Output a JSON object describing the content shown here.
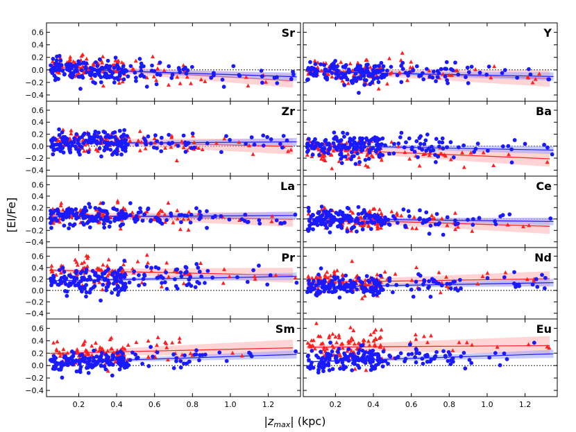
{
  "chart_data": {
    "type": "scatter",
    "xlabel_prefix": "|",
    "xlabel_var": "z",
    "xlabel_sub": "max",
    "xlabel_suffix": "| (kpc)",
    "ylabel": "[El/Fe]",
    "xlim": [
      0.03,
      1.37
    ],
    "ylim": [
      -0.5,
      0.75
    ],
    "xticks": [
      "0.2",
      "0.4",
      "0.6",
      "0.8",
      "1.0",
      "1.2"
    ],
    "xtick_values": [
      0.2,
      0.4,
      0.6,
      0.8,
      1.0,
      1.2
    ],
    "yticks": [
      "0.6",
      "0.4",
      "0.2",
      "0.0",
      "−0.2",
      "−0.4"
    ],
    "ytick_values": [
      0.6,
      0.4,
      0.2,
      0.0,
      -0.2,
      -0.4
    ],
    "colors": {
      "blue": "#1a1aff",
      "red": "#ff2020",
      "blue_band": "#9aa0ff",
      "red_band": "#ffb0b0"
    },
    "panels": [
      {
        "element": "Sr",
        "blue": {
          "mean": 0.0,
          "slope": -0.1,
          "spread": 0.09,
          "band": 0.03
        },
        "red": {
          "mean": 0.02,
          "slope": -0.18,
          "spread": 0.1,
          "band": 0.05
        }
      },
      {
        "element": "Y",
        "blue": {
          "mean": -0.04,
          "slope": -0.06,
          "spread": 0.08,
          "band": 0.03
        },
        "red": {
          "mean": -0.03,
          "slope": -0.1,
          "spread": 0.1,
          "band": 0.06
        }
      },
      {
        "element": "Zr",
        "blue": {
          "mean": 0.05,
          "slope": 0.02,
          "spread": 0.1,
          "band": 0.03
        },
        "red": {
          "mean": 0.08,
          "slope": -0.08,
          "spread": 0.1,
          "band": 0.06
        }
      },
      {
        "element": "Ba",
        "blue": {
          "mean": 0.0,
          "slope": -0.06,
          "spread": 0.1,
          "band": 0.03
        },
        "red": {
          "mean": -0.07,
          "slope": -0.13,
          "spread": 0.1,
          "band": 0.06
        }
      },
      {
        "element": "La",
        "blue": {
          "mean": 0.04,
          "slope": 0.02,
          "spread": 0.09,
          "band": 0.03
        },
        "red": {
          "mean": 0.06,
          "slope": -0.06,
          "spread": 0.09,
          "band": 0.06
        }
      },
      {
        "element": "Ce",
        "blue": {
          "mean": 0.0,
          "slope": -0.04,
          "spread": 0.1,
          "band": 0.03
        },
        "red": {
          "mean": -0.02,
          "slope": -0.1,
          "spread": 0.1,
          "band": 0.06
        }
      },
      {
        "element": "Pr",
        "blue": {
          "mean": 0.18,
          "slope": 0.06,
          "spread": 0.12,
          "band": 0.03
        },
        "red": {
          "mean": 0.34,
          "slope": -0.07,
          "spread": 0.12,
          "band": 0.06
        }
      },
      {
        "element": "Nd",
        "blue": {
          "mean": 0.07,
          "slope": 0.06,
          "spread": 0.09,
          "band": 0.03
        },
        "red": {
          "mean": 0.15,
          "slope": 0.05,
          "spread": 0.1,
          "band": 0.06
        }
      },
      {
        "element": "Sm",
        "blue": {
          "mean": 0.07,
          "slope": 0.1,
          "spread": 0.08,
          "band": 0.03
        },
        "red": {
          "mean": 0.21,
          "slope": 0.07,
          "spread": 0.1,
          "band": 0.06
        }
      },
      {
        "element": "Eu",
        "blue": {
          "mean": 0.08,
          "slope": 0.1,
          "spread": 0.09,
          "band": 0.03
        },
        "red": {
          "mean": 0.3,
          "slope": 0.02,
          "spread": 0.14,
          "band": 0.07
        }
      }
    ]
  }
}
